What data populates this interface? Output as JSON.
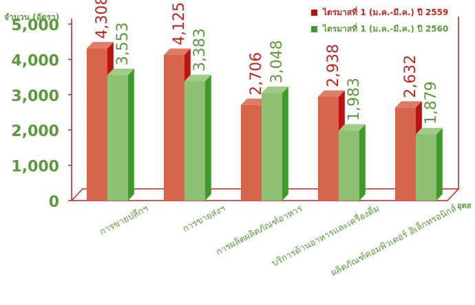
{
  "colors": {
    "series1_front": "#d7654e",
    "series1_top": "#e07b66",
    "series1_side": "#b81414",
    "series2_front": "#8ebf72",
    "series2_top": "#9fcd86",
    "series2_side": "#3f9a2a",
    "series1_text": "#c0251e",
    "series2_text": "#5a9a3a",
    "axis": "#c0251e",
    "tick_text": "#5a9a3a"
  },
  "chart_data": {
    "type": "bar",
    "ylabel": "จำนวน (อัตรา)",
    "xlabel": "อุตส",
    "categories": [
      "การขายปลีกฯ",
      "การขายส่งฯ",
      "การผลิตผลิตภัณฑ์อาหาร",
      "บริการด้านอาหารและเครื่องดื่ม",
      "ผลิตภัณฑ์คอมพิวเตอร์ อิเล็กทรอนิกส์"
    ],
    "series": [
      {
        "name": "ไตรมาสที่ 1 (ม.ค.-มี.ค.) ปี 2559",
        "values": [
          4308,
          4125,
          2706,
          2938,
          2632
        ]
      },
      {
        "name": "ไตรมาสที่ 1 (ม.ค.-มี.ค.) ปี 2560",
        "values": [
          3553,
          3383,
          3048,
          1983,
          1879
        ]
      }
    ],
    "value_labels": [
      [
        "4,308",
        "4,125",
        "2,706",
        "2,938",
        "2,632"
      ],
      [
        "3,553",
        "3,383",
        "3,048",
        "1,983",
        "1,879"
      ]
    ],
    "yticks": [
      0,
      1000,
      2000,
      3000,
      4000,
      5000
    ],
    "ytick_labels": [
      "0",
      "1,000",
      "2,000",
      "3,000",
      "4,000",
      "5,000"
    ],
    "ylim": [
      0,
      5000
    ],
    "grid": false,
    "legend_position": "top-right"
  }
}
